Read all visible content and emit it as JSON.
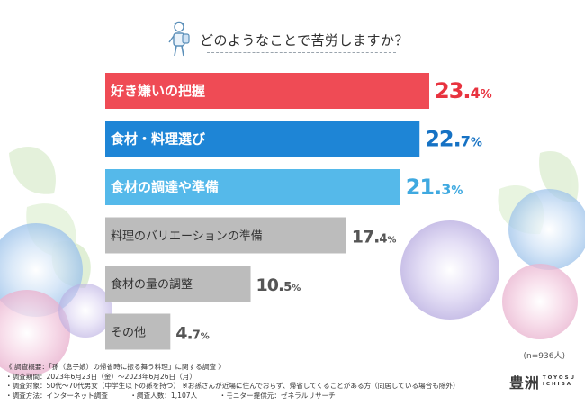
{
  "title": "どのようなことで苦労しますか？",
  "colors": {
    "red": "#ef4b55",
    "blue": "#1e85d6",
    "lightblue": "#55b9ea",
    "gray": "#bcbcbc",
    "value_red": "#e8333f",
    "value_blue": "#1672c4",
    "value_lightblue": "#3fa9e0",
    "value_gray": "#555555"
  },
  "chart_data": {
    "type": "bar",
    "orientation": "horizontal",
    "title": "どのようなことで苦労しますか？",
    "categories": [
      "好き嫌いの把握",
      "食材・料理選び",
      "食材の調達や準備",
      "料理のバリエーションの準備",
      "食材の量の調整",
      "その他"
    ],
    "values": [
      23.4,
      22.7,
      21.3,
      17.4,
      10.5,
      4.7
    ],
    "value_labels": [
      {
        "whole": "23.",
        "dec": "4",
        "unit": "%"
      },
      {
        "whole": "22.",
        "dec": "7",
        "unit": "%"
      },
      {
        "whole": "21.",
        "dec": "3",
        "unit": "%"
      },
      {
        "whole": "17.",
        "dec": "4",
        "unit": "%"
      },
      {
        "whole": "10.",
        "dec": "5",
        "unit": "%"
      },
      {
        "whole": "4.",
        "dec": "7",
        "unit": "%"
      }
    ],
    "bar_colors": [
      "red",
      "blue",
      "lightblue",
      "gray",
      "gray",
      "gray"
    ],
    "value_colors": [
      "value_red",
      "value_blue",
      "value_lightblue",
      "value_gray",
      "value_gray",
      "value_gray"
    ],
    "label_colors": [
      "#ffffff",
      "#ffffff",
      "#ffffff",
      "#333333",
      "#333333",
      "#333333"
    ],
    "xlim": [
      0,
      23.4
    ],
    "grid": false,
    "legend": "none"
  },
  "sample_note": "(n=936人)",
  "notes": {
    "line1": "《 調査概要：「孫（息子娘）の帰省時に振る舞う料理」に関する調査 》",
    "line2": "・調査期間：2023年6月23日（金）～2023年6月26日（月）",
    "line3a": "・調査対象：50代～70代男女（中学生以下の孫を持つ）",
    "line3b": "※お孫さんが近場に住んでおらず、帰省してくることがある方（同居している場合も除外）",
    "line4a": "・調査方法：インターネット調査",
    "line4b": "・調査人数：1,107人",
    "line4c": "・モニター提供元：ゼネラルリサーチ"
  },
  "logo": {
    "kanji": "豊洲",
    "line1": "TOYOSU",
    "line2": "ICHIBA"
  }
}
